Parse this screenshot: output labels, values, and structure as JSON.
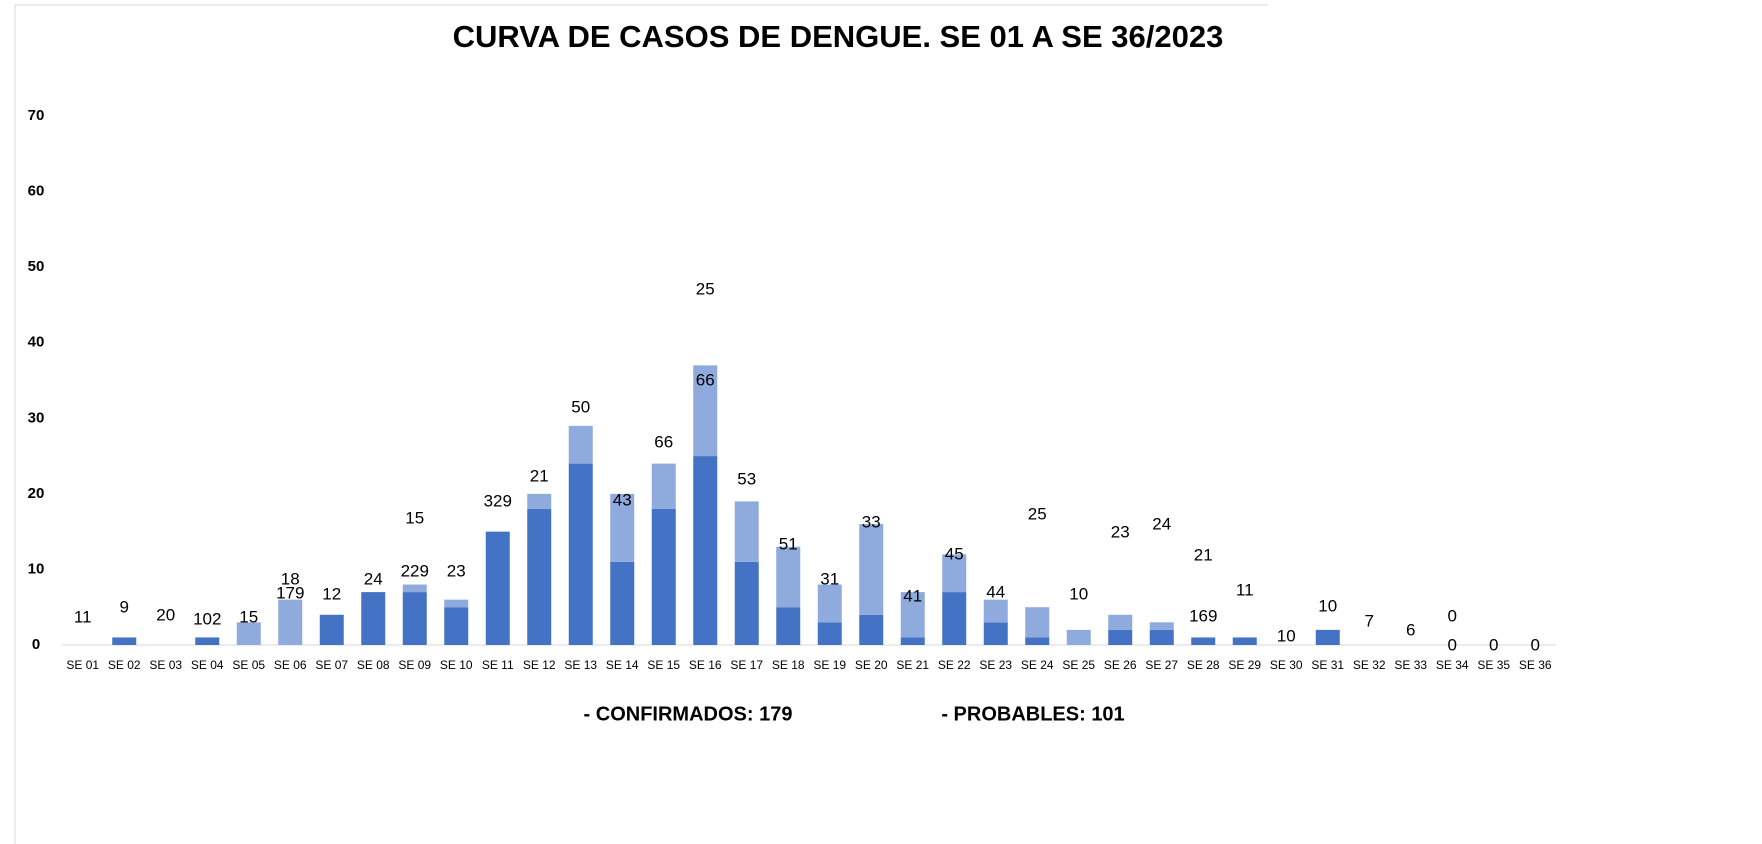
{
  "chart_data": {
    "type": "bar",
    "stacked": true,
    "title": "CURVA DE CASOS DE DENGUE. SE 01 A SE 36/2023",
    "categories": [
      "SE 01",
      "SE 02",
      "SE 03",
      "SE 04",
      "SE 05",
      "SE 06",
      "SE 07",
      "SE 08",
      "SE 09",
      "SE 10",
      "SE 11",
      "SE 12",
      "SE 13",
      "SE 14",
      "SE 15",
      "SE 16",
      "SE 17",
      "SE 18",
      "SE 19",
      "SE 20",
      "SE 21",
      "SE 22",
      "SE 23",
      "SE 24",
      "SE 25",
      "SE 26",
      "SE 27",
      "SE 28",
      "SE 29",
      "SE 30",
      "SE 31",
      "SE 32",
      "SE 33",
      "SE 34",
      "SE 35",
      "SE 36"
    ],
    "series": [
      {
        "color": "#4472c4",
        "values": [
          0,
          1,
          0,
          1,
          0,
          0,
          4,
          7,
          7,
          5,
          15,
          18,
          24,
          11,
          18,
          25,
          11,
          5,
          3,
          4,
          1,
          7,
          3,
          1,
          0,
          2,
          2,
          1,
          1,
          0,
          2,
          0,
          0,
          0,
          0,
          0
        ]
      },
      {
        "color": "#8faadc",
        "values": [
          0,
          0,
          0,
          0,
          3,
          6,
          0,
          0,
          1,
          1,
          0,
          2,
          5,
          9,
          6,
          12,
          8,
          8,
          5,
          12,
          6,
          5,
          3,
          4,
          2,
          2,
          1,
          0,
          0,
          0,
          0,
          0,
          0,
          0,
          0,
          0
        ]
      }
    ],
    "annotations": [
      [
        "11"
      ],
      [
        "9"
      ],
      [
        "20"
      ],
      [
        "102"
      ],
      [
        "15"
      ],
      [
        "18",
        "179"
      ],
      [
        "12"
      ],
      [
        "24"
      ],
      [
        "15",
        "229"
      ],
      [
        "23"
      ],
      [
        "329"
      ],
      [
        "21"
      ],
      [
        "50"
      ],
      [
        "43"
      ],
      [
        "66"
      ],
      [
        "25",
        "66"
      ],
      [
        "53"
      ],
      [
        "51"
      ],
      [
        "31"
      ],
      [
        "33"
      ],
      [
        "41"
      ],
      [
        "45"
      ],
      [
        "44"
      ],
      [
        "25"
      ],
      [
        "10"
      ],
      [
        "23"
      ],
      [
        "24"
      ],
      [
        "21",
        "169"
      ],
      [
        "11"
      ],
      [
        "10"
      ],
      [
        "10"
      ],
      [
        "7"
      ],
      [
        "6"
      ],
      [
        "0",
        "0"
      ],
      [
        "0"
      ],
      [
        "0"
      ]
    ],
    "ylim": [
      0,
      70
    ],
    "yticks": [
      0,
      10,
      20,
      30,
      40,
      50,
      60,
      70
    ],
    "grid": false,
    "footer": [
      "- CONFIRMADOS: 179",
      "- PROBABLES: 101"
    ]
  }
}
